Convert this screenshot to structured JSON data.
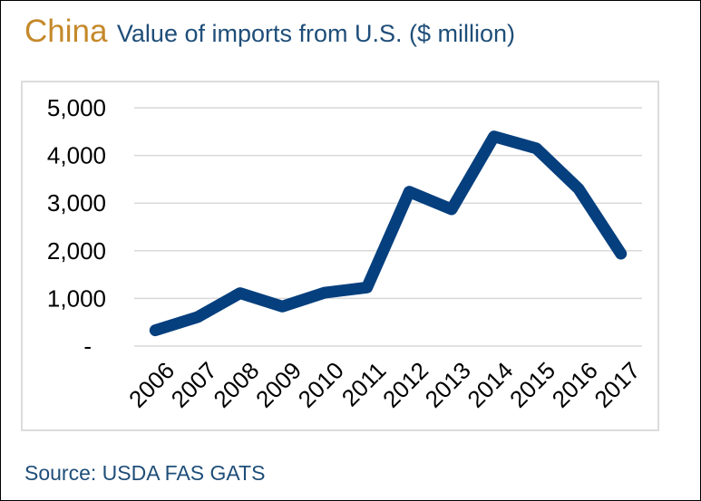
{
  "header": {
    "country": "China",
    "subtitle": "Value of imports from U.S. ($ million)"
  },
  "footer": {
    "source": "Source: USDA FAS GATS"
  },
  "colors": {
    "accent": "#c5892a",
    "text": "#1f4e79",
    "line": "#053f7e",
    "grid": "#d9d9d9"
  },
  "chart_data": {
    "type": "line",
    "x": [
      "2006",
      "2007",
      "2008",
      "2009",
      "2010",
      "2011",
      "2012",
      "2013",
      "2014",
      "2015",
      "2016",
      "2017"
    ],
    "series": [
      {
        "values": [
          330,
          610,
          1110,
          830,
          1120,
          1230,
          3240,
          2870,
          4400,
          4150,
          3300,
          1940
        ]
      }
    ],
    "ylim": [
      0,
      5000
    ],
    "yticks": [
      0,
      1000,
      2000,
      3000,
      4000,
      5000
    ],
    "ytick_labels": [
      "-",
      "1,000",
      "2,000",
      "3,000",
      "4,000",
      "5,000"
    ],
    "grid": true,
    "legend": "none"
  }
}
